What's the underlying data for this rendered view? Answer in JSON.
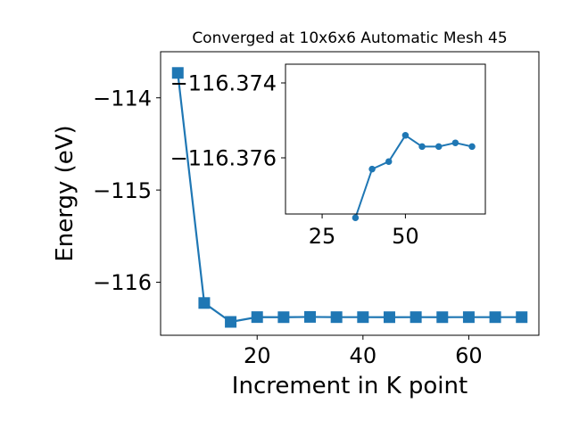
{
  "chart_data": [
    {
      "type": "line",
      "title": "Converged at 10x6x6 Automatic Mesh 45",
      "xlabel": "Increment in K point",
      "ylabel": "Energy (eV)",
      "xlim": [
        1.75,
        73.25
      ],
      "ylim": [
        -116.575,
        -113.5
      ],
      "xticks": [
        20,
        40,
        60
      ],
      "yticks": [
        -116,
        -115,
        -114
      ],
      "marker": "square",
      "color": "#1f77b4",
      "grid": false,
      "series": [
        {
          "x": [
            5,
            10,
            15,
            20,
            25,
            30,
            35,
            40,
            45,
            50,
            55,
            60,
            65,
            70
          ],
          "y": [
            -113.73,
            -116.225,
            -116.43,
            -116.378,
            -116.379,
            -116.376,
            -116.3785,
            -116.3785,
            -116.379,
            -116.3785,
            -116.379,
            -116.3785,
            -116.3788,
            -116.3788
          ]
        }
      ]
    },
    {
      "type": "line",
      "xlim": [
        14,
        74
      ],
      "ylim": [
        -116.3775,
        -116.3735
      ],
      "xticks": [
        25,
        50
      ],
      "yticks": [
        -116.376,
        -116.374
      ],
      "marker": "circle",
      "color": "#1f77b4",
      "grid": false,
      "series": [
        {
          "x": [
            35,
            40,
            45,
            50,
            55,
            60,
            65,
            70
          ],
          "y": [
            -116.3776,
            -116.3763,
            -116.3761,
            -116.3754,
            -116.3757,
            -116.3757,
            -116.3756,
            -116.3757
          ]
        }
      ]
    }
  ]
}
